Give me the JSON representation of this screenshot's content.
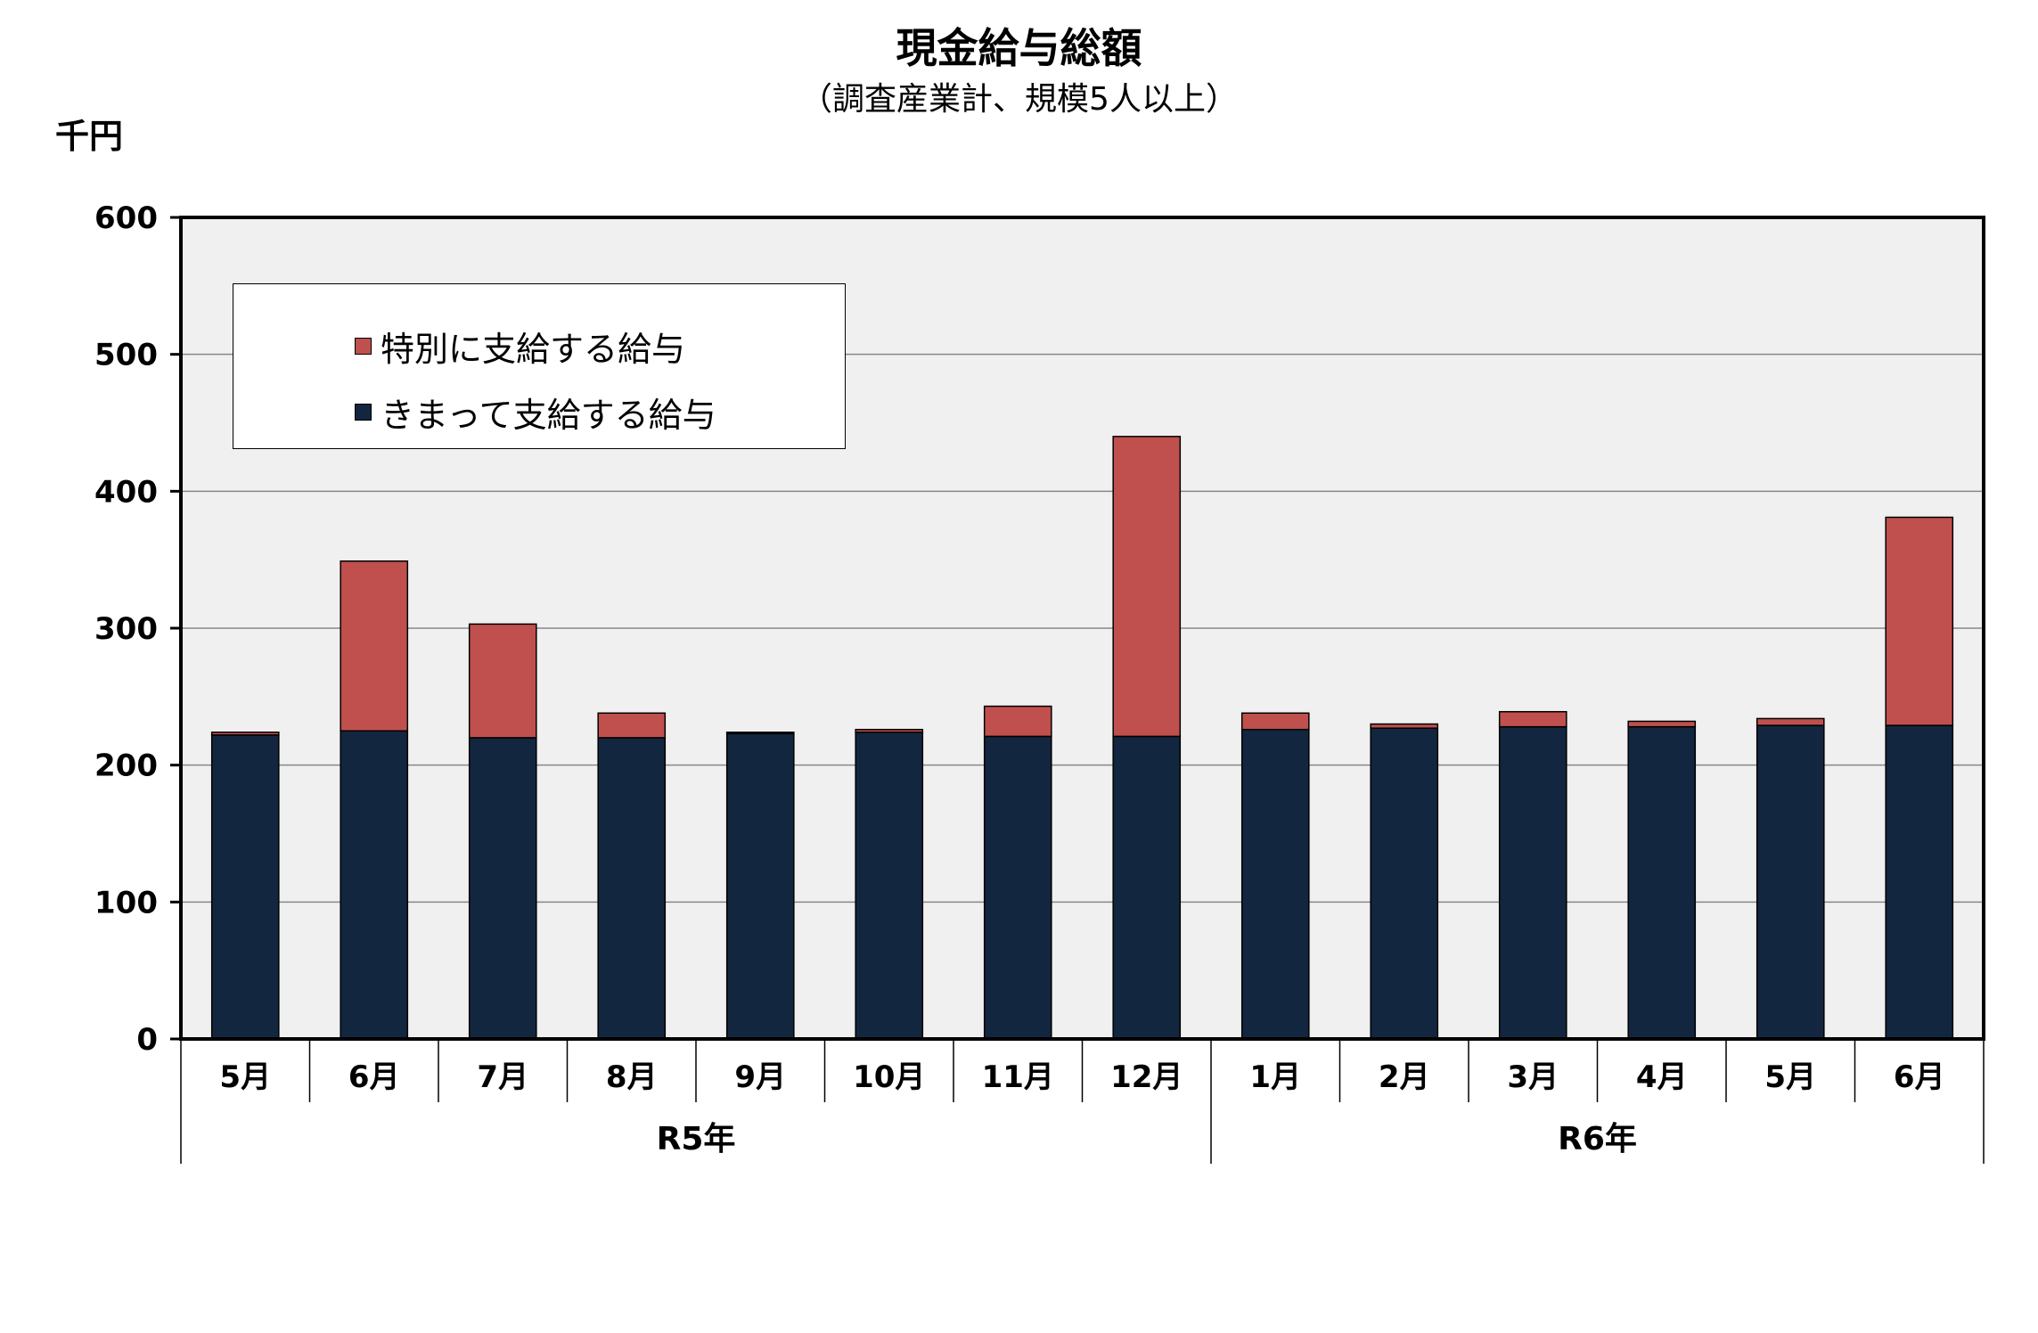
{
  "title": "現金給与総額",
  "subtitle": "（調査産業計、規模5人以上）",
  "unit_label": "千円",
  "colors": {
    "special": "#c0504d",
    "regular": "#13263f",
    "plot_bg": "#f0f0f0"
  },
  "chart_data": {
    "type": "bar",
    "stacked": true,
    "ylim": [
      0,
      600
    ],
    "yticks": [
      "0",
      "100",
      "200",
      "300",
      "400",
      "500",
      "600"
    ],
    "grid": true,
    "legend_position": "top-left",
    "categories": [
      "5月",
      "6月",
      "7月",
      "8月",
      "9月",
      "10月",
      "11月",
      "12月",
      "1月",
      "2月",
      "3月",
      "4月",
      "5月",
      "6月"
    ],
    "groups": [
      {
        "label": "R5年",
        "span": 8
      },
      {
        "label": "R6年",
        "span": 6
      }
    ],
    "series": [
      {
        "name": "きまって支給する給与",
        "color": "#13263f",
        "values": [
          222,
          225,
          220,
          220,
          223,
          224,
          221,
          221,
          226,
          227,
          228,
          228,
          229,
          229
        ]
      },
      {
        "name": "特別に支給する給与",
        "color": "#c0504d",
        "values": [
          2,
          124,
          83,
          18,
          1,
          2,
          22,
          219,
          12,
          3,
          11,
          4,
          5,
          152
        ]
      }
    ]
  }
}
